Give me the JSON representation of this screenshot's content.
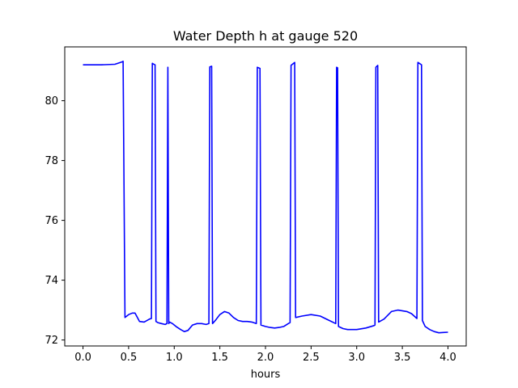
{
  "chart_data": {
    "type": "line",
    "title": "Water Depth h at gauge 520",
    "xlabel": "hours",
    "ylabel": "",
    "xlim": [
      -0.2,
      4.2
    ],
    "ylim": [
      71.8,
      81.8
    ],
    "xticks": [
      0.0,
      0.5,
      1.0,
      1.5,
      2.0,
      2.5,
      3.0,
      3.5,
      4.0
    ],
    "xtick_labels": [
      "0.0",
      "0.5",
      "1.0",
      "1.5",
      "2.0",
      "2.5",
      "3.0",
      "3.5",
      "4.0"
    ],
    "yticks": [
      72,
      74,
      76,
      78,
      80
    ],
    "ytick_labels": [
      "72",
      "74",
      "76",
      "78",
      "80"
    ],
    "grid": false,
    "series": [
      {
        "color": "#0000ff",
        "x": [
          0.0,
          0.2,
          0.35,
          0.43,
          0.44,
          0.46,
          0.5,
          0.54,
          0.57,
          0.62,
          0.67,
          0.73,
          0.75,
          0.76,
          0.77,
          0.79,
          0.8,
          0.82,
          0.86,
          0.9,
          0.92,
          0.93,
          0.94,
          0.95,
          0.98,
          1.02,
          1.07,
          1.11,
          1.15,
          1.2,
          1.25,
          1.3,
          1.35,
          1.38,
          1.39,
          1.41,
          1.42,
          1.45,
          1.5,
          1.55,
          1.6,
          1.65,
          1.7,
          1.75,
          1.8,
          1.85,
          1.9,
          1.91,
          1.94,
          1.95,
          2.0,
          2.05,
          2.1,
          2.15,
          2.2,
          2.25,
          2.27,
          2.28,
          2.32,
          2.33,
          2.4,
          2.5,
          2.6,
          2.7,
          2.77,
          2.78,
          2.79,
          2.8,
          2.85,
          2.9,
          3.0,
          3.1,
          3.19,
          3.2,
          3.21,
          3.23,
          3.24,
          3.3,
          3.38,
          3.45,
          3.55,
          3.6,
          3.66,
          3.67,
          3.71,
          3.72,
          3.75,
          3.8,
          3.85,
          3.9,
          3.95,
          4.0
        ],
        "values": [
          81.2,
          81.2,
          81.22,
          81.3,
          81.32,
          72.75,
          72.85,
          72.9,
          72.9,
          72.62,
          72.6,
          72.7,
          72.72,
          81.25,
          81.23,
          81.2,
          72.62,
          72.58,
          72.55,
          72.52,
          72.55,
          81.12,
          72.55,
          72.6,
          72.55,
          72.45,
          72.35,
          72.28,
          72.32,
          72.5,
          72.55,
          72.55,
          72.52,
          72.55,
          81.13,
          81.15,
          72.55,
          72.65,
          72.85,
          72.95,
          72.9,
          72.75,
          72.65,
          72.62,
          72.62,
          72.6,
          72.55,
          81.12,
          81.08,
          72.5,
          72.45,
          72.42,
          72.4,
          72.42,
          72.45,
          72.55,
          72.58,
          81.18,
          81.28,
          72.75,
          72.8,
          72.85,
          72.8,
          72.65,
          72.55,
          81.12,
          81.1,
          72.45,
          72.38,
          72.35,
          72.35,
          72.4,
          72.48,
          72.5,
          81.12,
          81.18,
          72.6,
          72.7,
          72.95,
          73.0,
          72.95,
          72.88,
          72.72,
          81.28,
          81.2,
          72.65,
          72.45,
          72.35,
          72.28,
          72.24,
          72.25,
          72.26
        ]
      }
    ]
  }
}
